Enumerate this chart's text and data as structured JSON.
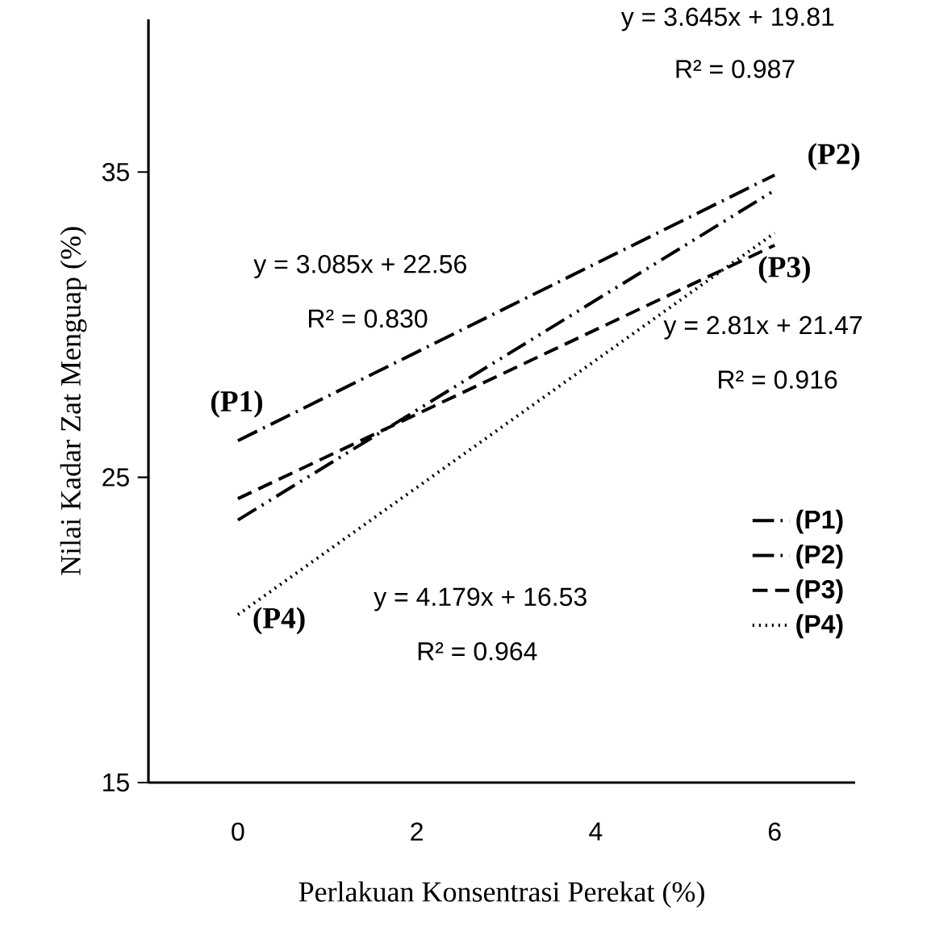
{
  "chart_data": {
    "type": "line",
    "xlabel": "Perlakuan Konsentrasi Perekat (%)",
    "ylabel": "Nilai Kadar Zat Menguap (%)",
    "series": [
      {
        "name": "(P1)",
        "color": "#000000",
        "line_style": "dashdot",
        "values": [
          26.2,
          34.9
        ]
      },
      {
        "name": "(P2)",
        "color": "#000000",
        "line_style": "dashdotdot",
        "values": [
          23.6,
          34.4
        ]
      },
      {
        "name": "(P3)",
        "color": "#000000",
        "line_style": "dashed",
        "values": [
          24.3,
          32.6
        ]
      },
      {
        "name": "(P4)",
        "color": "#000000",
        "line_style": "dotted",
        "values": [
          20.5,
          33.0
        ]
      }
    ],
    "x": [
      0,
      6
    ],
    "xlim": [
      -1,
      6.9
    ],
    "ylim": [
      15,
      40
    ],
    "xticks": [
      0,
      2,
      4,
      6
    ],
    "yticks": [
      15,
      25,
      35
    ],
    "grid": false,
    "legend": "bottom right",
    "marker": "none",
    "annotations": [
      "y = 3.645x + 19.81",
      "R² = 0.987",
      "(P2)",
      "y = 3.085x + 22.56",
      "R² = 0.830",
      "(P3)",
      "y = 2.81x + 21.47",
      "R² = 0.916",
      "(P1)",
      "(P4)",
      "y = 4.179x + 16.53",
      "R² = 0.964"
    ]
  }
}
